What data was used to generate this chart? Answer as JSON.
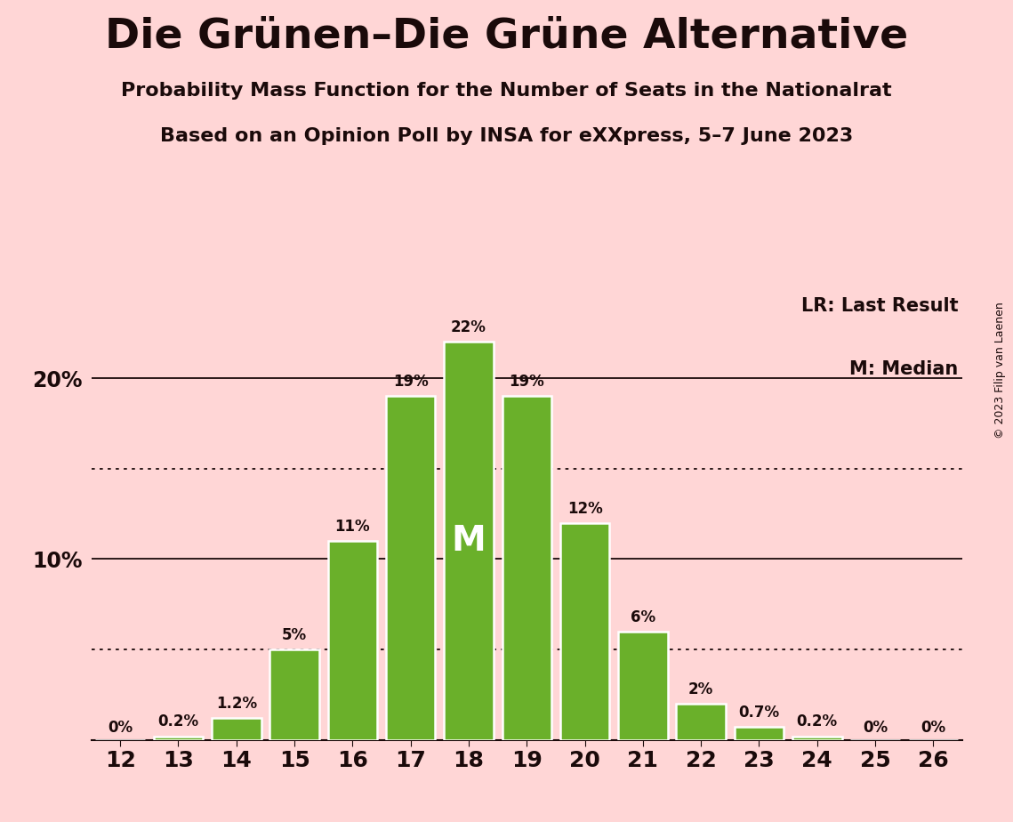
{
  "title": "Die Grünen–Die Grüne Alternative",
  "subtitle1": "Probability Mass Function for the Number of Seats in the Nationalrat",
  "subtitle2": "Based on an Opinion Poll by INSA for eXXpress, 5–7 June 2023",
  "copyright": "© 2023 Filip van Laenen",
  "categories": [
    12,
    13,
    14,
    15,
    16,
    17,
    18,
    19,
    20,
    21,
    22,
    23,
    24,
    25,
    26
  ],
  "values": [
    0.0,
    0.2,
    1.2,
    5.0,
    11.0,
    19.0,
    22.0,
    19.0,
    12.0,
    6.0,
    2.0,
    0.7,
    0.2,
    0.0,
    0.0
  ],
  "labels": [
    "0%",
    "0.2%",
    "1.2%",
    "5%",
    "11%",
    "19%",
    "22%",
    "19%",
    "12%",
    "6%",
    "2%",
    "0.7%",
    "0.2%",
    "0%",
    "0%"
  ],
  "bar_color": "#6ab02a",
  "bar_edge_color": "#ffffff",
  "background_color": "#ffd6d6",
  "text_color": "#1a0a0a",
  "median_seat": 18,
  "lr_seat": 26,
  "ytick_positions": [
    10.0,
    20.0
  ],
  "ytick_labels": [
    "10%",
    "20%"
  ],
  "solid_hlines": [
    10.0,
    20.0
  ],
  "dotted_hlines": [
    5.0,
    15.0
  ],
  "xlim": [
    11.5,
    26.5
  ],
  "ylim": [
    0,
    25
  ],
  "legend_lr": "LR: Last Result",
  "legend_m": "M: Median"
}
